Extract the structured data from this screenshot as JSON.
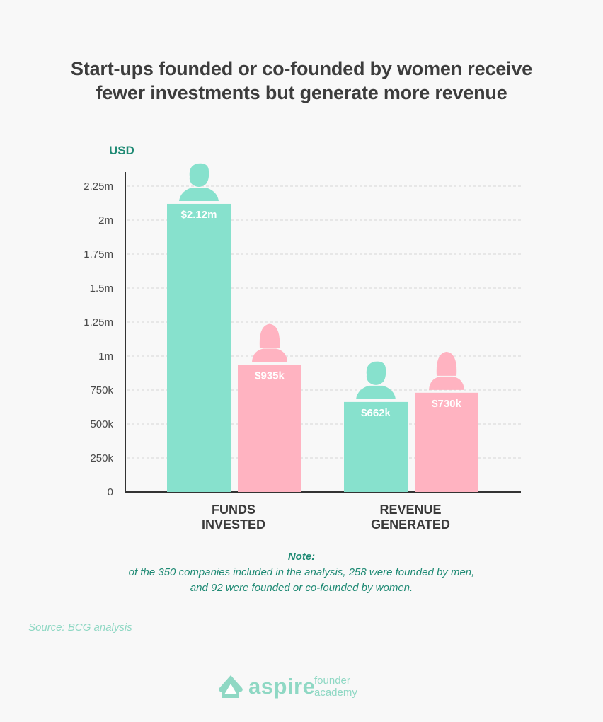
{
  "title": {
    "line1": "Start-ups founded or co-founded by women receive",
    "line2": "fewer investments but generate more revenue"
  },
  "unit_label": "USD",
  "colors": {
    "men": "#87e1cd",
    "women": "#ffb3c1",
    "accent": "#1f8a74",
    "axis": "#333333"
  },
  "chart_data": {
    "type": "bar",
    "categories": [
      "FUNDS INVESTED",
      "REVENUE GENERATED"
    ],
    "series": [
      {
        "icon": "man-icon",
        "values": [
          2120000,
          662000
        ],
        "labels": [
          "$2.12m",
          "$662k"
        ]
      },
      {
        "icon": "woman-icon",
        "values": [
          935000,
          730000
        ],
        "labels": [
          "$935k",
          "$730k"
        ]
      }
    ],
    "ylabel": "USD",
    "ylim": [
      0,
      2250000
    ],
    "yticks": [
      {
        "value": 0,
        "label": "0"
      },
      {
        "value": 250000,
        "label": "250k"
      },
      {
        "value": 500000,
        "label": "500k"
      },
      {
        "value": 750000,
        "label": "750k"
      },
      {
        "value": 1000000,
        "label": "1m"
      },
      {
        "value": 1250000,
        "label": "1.25m"
      },
      {
        "value": 1500000,
        "label": "1.5m"
      },
      {
        "value": 1750000,
        "label": "1.75m"
      },
      {
        "value": 2000000,
        "label": "2m"
      },
      {
        "value": 2250000,
        "label": "2.25m"
      }
    ],
    "grid": true
  },
  "categories_display": [
    {
      "line1": "FUNDS",
      "line2": "INVESTED"
    },
    {
      "line1": "REVENUE",
      "line2": "GENERATED"
    }
  ],
  "note": {
    "title": "Note:",
    "line1": "of the 350 companies included in the analysis, 258 were founded by men,",
    "line2": "and 92 were founded or co-founded by women."
  },
  "source": "Source: BCG analysis",
  "logo": {
    "word": "aspire",
    "sub1": "founder",
    "sub2": "academy"
  }
}
